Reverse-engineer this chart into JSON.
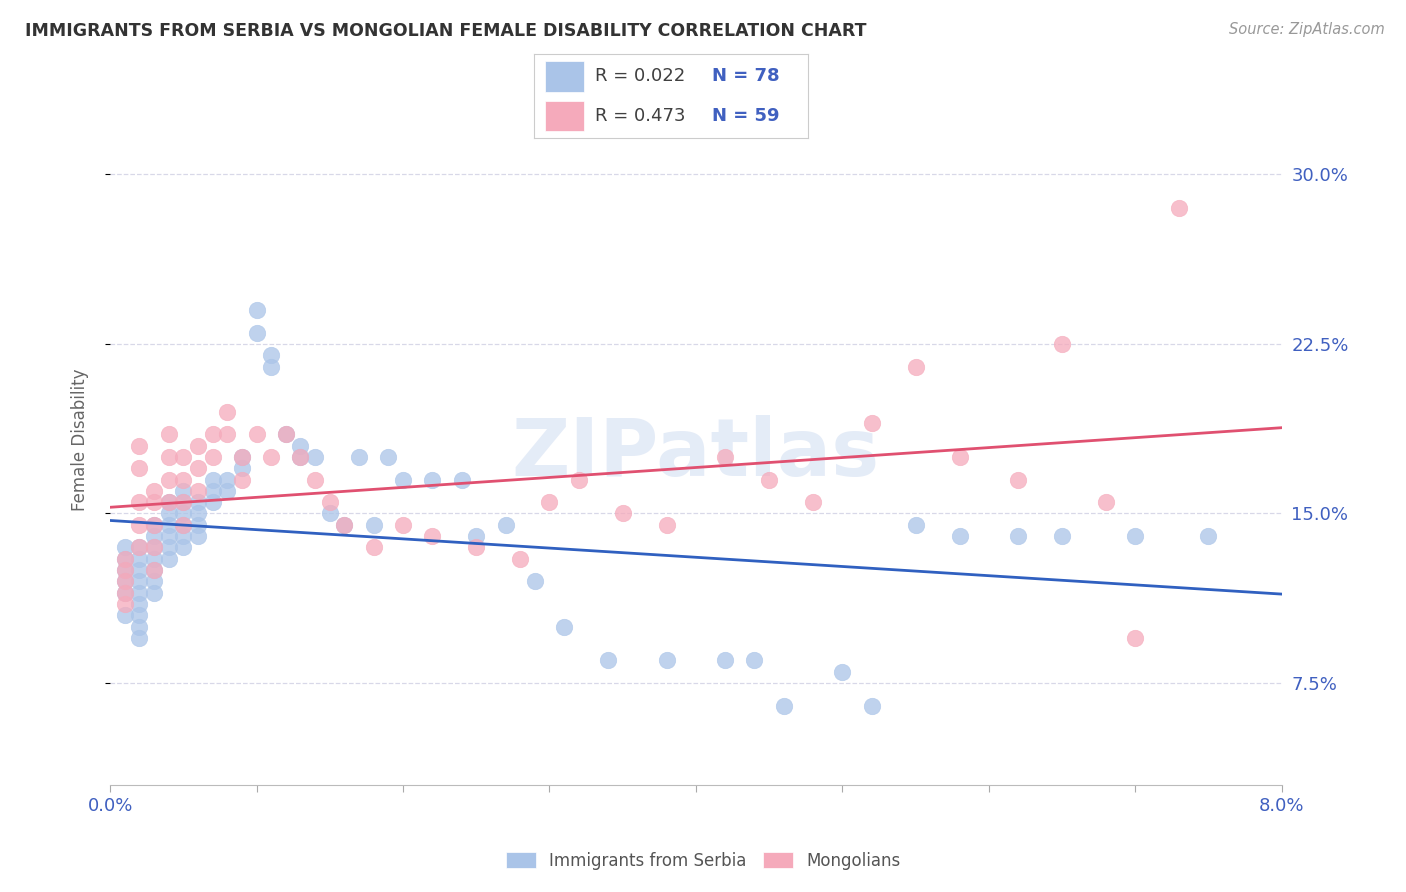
{
  "title": "IMMIGRANTS FROM SERBIA VS MONGOLIAN FEMALE DISABILITY CORRELATION CHART",
  "source": "Source: ZipAtlas.com",
  "ylabel": "Female Disability",
  "ytick_labels": [
    "7.5%",
    "15.0%",
    "22.5%",
    "30.0%"
  ],
  "ytick_values": [
    0.075,
    0.15,
    0.225,
    0.3
  ],
  "xlim": [
    0.0,
    0.08
  ],
  "ylim": [
    0.03,
    0.335
  ],
  "r_serbia": "0.022",
  "n_serbia": "78",
  "r_mongolia": "0.473",
  "n_mongolia": "59",
  "color_serbia": "#aac4e8",
  "color_mongolia": "#f5aabb",
  "color_line_serbia": "#3060c0",
  "color_line_mongolia": "#e05070",
  "watermark": "ZIPatlas",
  "background_color": "#ffffff",
  "grid_color": "#d8d8e8",
  "serbia_x": [
    0.001,
    0.001,
    0.001,
    0.001,
    0.001,
    0.001,
    0.002,
    0.002,
    0.002,
    0.002,
    0.002,
    0.002,
    0.002,
    0.002,
    0.002,
    0.003,
    0.003,
    0.003,
    0.003,
    0.003,
    0.003,
    0.003,
    0.004,
    0.004,
    0.004,
    0.004,
    0.004,
    0.004,
    0.005,
    0.005,
    0.005,
    0.005,
    0.005,
    0.005,
    0.006,
    0.006,
    0.006,
    0.006,
    0.007,
    0.007,
    0.007,
    0.008,
    0.008,
    0.009,
    0.009,
    0.01,
    0.01,
    0.011,
    0.011,
    0.012,
    0.013,
    0.013,
    0.014,
    0.015,
    0.016,
    0.017,
    0.018,
    0.019,
    0.02,
    0.022,
    0.024,
    0.025,
    0.027,
    0.029,
    0.031,
    0.034,
    0.038,
    0.042,
    0.044,
    0.046,
    0.05,
    0.052,
    0.055,
    0.058,
    0.062,
    0.065,
    0.07,
    0.075
  ],
  "serbia_y": [
    0.125,
    0.13,
    0.135,
    0.12,
    0.115,
    0.105,
    0.135,
    0.13,
    0.125,
    0.12,
    0.115,
    0.11,
    0.105,
    0.1,
    0.095,
    0.145,
    0.14,
    0.135,
    0.13,
    0.125,
    0.12,
    0.115,
    0.155,
    0.15,
    0.145,
    0.14,
    0.135,
    0.13,
    0.16,
    0.155,
    0.15,
    0.145,
    0.14,
    0.135,
    0.155,
    0.15,
    0.145,
    0.14,
    0.165,
    0.16,
    0.155,
    0.165,
    0.16,
    0.175,
    0.17,
    0.24,
    0.23,
    0.22,
    0.215,
    0.185,
    0.18,
    0.175,
    0.175,
    0.15,
    0.145,
    0.175,
    0.145,
    0.175,
    0.165,
    0.165,
    0.165,
    0.14,
    0.145,
    0.12,
    0.1,
    0.085,
    0.085,
    0.085,
    0.085,
    0.065,
    0.08,
    0.065,
    0.145,
    0.14,
    0.14,
    0.14,
    0.14,
    0.14
  ],
  "mongolia_x": [
    0.001,
    0.001,
    0.001,
    0.001,
    0.001,
    0.002,
    0.002,
    0.002,
    0.002,
    0.002,
    0.003,
    0.003,
    0.003,
    0.003,
    0.003,
    0.004,
    0.004,
    0.004,
    0.004,
    0.005,
    0.005,
    0.005,
    0.005,
    0.006,
    0.006,
    0.006,
    0.007,
    0.007,
    0.008,
    0.008,
    0.009,
    0.009,
    0.01,
    0.011,
    0.012,
    0.013,
    0.014,
    0.015,
    0.016,
    0.018,
    0.02,
    0.022,
    0.025,
    0.028,
    0.03,
    0.032,
    0.035,
    0.038,
    0.042,
    0.045,
    0.048,
    0.052,
    0.055,
    0.058,
    0.062,
    0.065,
    0.068,
    0.07,
    0.073
  ],
  "mongolia_y": [
    0.13,
    0.125,
    0.12,
    0.115,
    0.11,
    0.18,
    0.17,
    0.155,
    0.145,
    0.135,
    0.16,
    0.155,
    0.145,
    0.135,
    0.125,
    0.185,
    0.175,
    0.165,
    0.155,
    0.175,
    0.165,
    0.155,
    0.145,
    0.18,
    0.17,
    0.16,
    0.185,
    0.175,
    0.195,
    0.185,
    0.175,
    0.165,
    0.185,
    0.175,
    0.185,
    0.175,
    0.165,
    0.155,
    0.145,
    0.135,
    0.145,
    0.14,
    0.135,
    0.13,
    0.155,
    0.165,
    0.15,
    0.145,
    0.175,
    0.165,
    0.155,
    0.19,
    0.215,
    0.175,
    0.165,
    0.225,
    0.155,
    0.095,
    0.285
  ]
}
